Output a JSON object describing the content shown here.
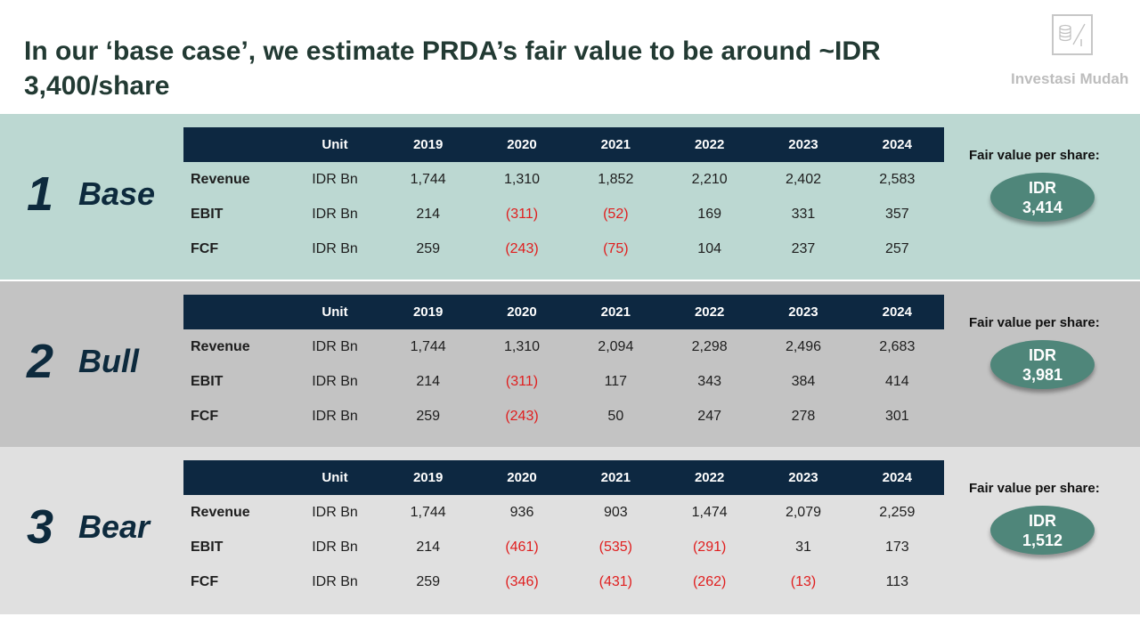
{
  "title": "In our ‘base case’, we estimate PRDA’s fair value to be around ~IDR 3,400/share",
  "logo": {
    "text": "Investasi Mudah",
    "icon": "coins-percent-icon"
  },
  "columns": [
    "",
    "Unit",
    "2019",
    "2020",
    "2021",
    "2022",
    "2023",
    "2024"
  ],
  "fair_value_label": "Fair value per share:",
  "colors": {
    "header": "#0d2841",
    "negative": "#e01e1e",
    "pill": "#4f867a",
    "base_band": "#bcd8d2",
    "bull_band": "#c3c3c3",
    "bear_band": "#e0e0e0"
  },
  "scenarios": [
    {
      "number": "1",
      "name": "Base",
      "fv_currency": "IDR",
      "fv_value": "3,414",
      "rows": [
        {
          "metric": "Revenue",
          "unit": "IDR Bn",
          "values": [
            "1,744",
            "1,310",
            "1,852",
            "2,210",
            "2,402",
            "2,583"
          ]
        },
        {
          "metric": "EBIT",
          "unit": "IDR Bn",
          "values": [
            "214",
            "(311)",
            "(52)",
            "169",
            "331",
            "357"
          ]
        },
        {
          "metric": "FCF",
          "unit": "IDR Bn",
          "values": [
            "259",
            "(243)",
            "(75)",
            "104",
            "237",
            "257"
          ]
        }
      ]
    },
    {
      "number": "2",
      "name": "Bull",
      "fv_currency": "IDR",
      "fv_value": "3,981",
      "rows": [
        {
          "metric": "Revenue",
          "unit": "IDR Bn",
          "values": [
            "1,744",
            "1,310",
            "2,094",
            "2,298",
            "2,496",
            "2,683"
          ]
        },
        {
          "metric": "EBIT",
          "unit": "IDR Bn",
          "values": [
            "214",
            "(311)",
            "117",
            "343",
            "384",
            "414"
          ]
        },
        {
          "metric": "FCF",
          "unit": "IDR Bn",
          "values": [
            "259",
            "(243)",
            "50",
            "247",
            "278",
            "301"
          ]
        }
      ]
    },
    {
      "number": "3",
      "name": "Bear",
      "fv_currency": "IDR",
      "fv_value": "1,512",
      "rows": [
        {
          "metric": "Revenue",
          "unit": "IDR Bn",
          "values": [
            "1,744",
            "936",
            "903",
            "1,474",
            "2,079",
            "2,259"
          ]
        },
        {
          "metric": "EBIT",
          "unit": "IDR Bn",
          "values": [
            "214",
            "(461)",
            "(535)",
            "(291)",
            "31",
            "173"
          ]
        },
        {
          "metric": "FCF",
          "unit": "IDR Bn",
          "values": [
            "259",
            "(346)",
            "(431)",
            "(262)",
            "(13)",
            "113"
          ]
        }
      ]
    }
  ]
}
